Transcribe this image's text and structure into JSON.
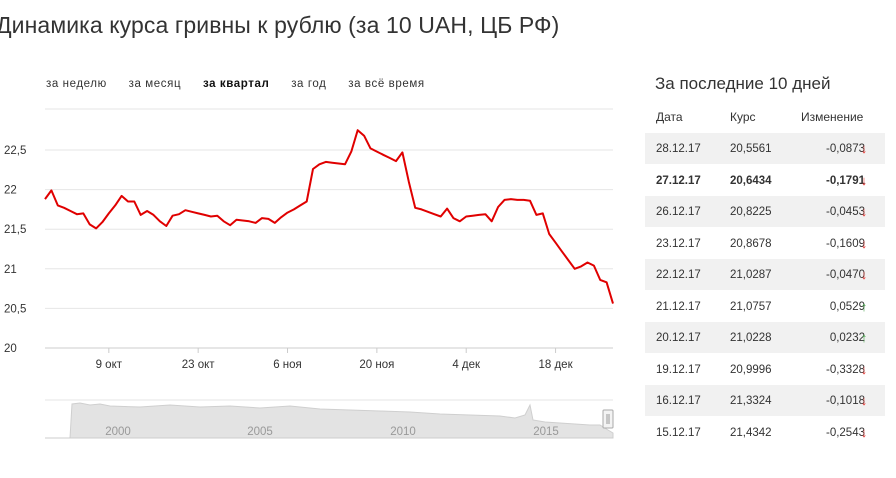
{
  "title": "Динамика курса гривны к рублю (за 10 UAH, ЦБ РФ)",
  "tabs": [
    {
      "label": "за неделю",
      "active": false
    },
    {
      "label": "за месяц",
      "active": false
    },
    {
      "label": "за квартал",
      "active": true
    },
    {
      "label": "за год",
      "active": false
    },
    {
      "label": "за всё время",
      "active": false
    }
  ],
  "chart_data": {
    "type": "line",
    "line_color": "#e00000",
    "grid": "horizontal",
    "ylim": [
      20,
      22.5
    ],
    "yticks": [
      "22,5",
      "22",
      "21,5",
      "21",
      "20,5",
      "20"
    ],
    "yvalues": [
      22.5,
      22,
      21.5,
      21,
      20.5,
      20
    ],
    "xticks": [
      "9 окт",
      "23 окт",
      "6 ноя",
      "20 ноя",
      "4 дек",
      "18 дек"
    ],
    "xtick_days": [
      10,
      24,
      38,
      52,
      66,
      80
    ],
    "series": [
      {
        "x": [
          0,
          1,
          2,
          3,
          4,
          5,
          6,
          7,
          8,
          9,
          10,
          11,
          12,
          13,
          14,
          15,
          16,
          17,
          18,
          19,
          20,
          21,
          22,
          23,
          24,
          25,
          26,
          27,
          28,
          29,
          30,
          31,
          32,
          33,
          34,
          35,
          36,
          37,
          38,
          39,
          40,
          41,
          42,
          43,
          44,
          45,
          46,
          47,
          48,
          49,
          50,
          51,
          52,
          53,
          54,
          55,
          56,
          57,
          58,
          59,
          60,
          61,
          62,
          63,
          64,
          65,
          66,
          67,
          68,
          69,
          70,
          71,
          72,
          73,
          74,
          75,
          76,
          77,
          78,
          79,
          80,
          81,
          82,
          83,
          84,
          85,
          86,
          87,
          88,
          89
        ],
        "y": [
          21.88,
          21.99,
          21.8,
          21.77,
          21.73,
          21.69,
          21.7,
          21.56,
          21.51,
          21.59,
          21.7,
          21.8,
          21.92,
          21.85,
          21.85,
          21.68,
          21.73,
          21.68,
          21.6,
          21.54,
          21.67,
          21.69,
          21.74,
          21.72,
          21.7,
          21.68,
          21.66,
          21.67,
          21.6,
          21.55,
          21.62,
          21.61,
          21.6,
          21.58,
          21.64,
          21.63,
          21.58,
          21.65,
          21.71,
          21.75,
          21.8,
          21.85,
          22.26,
          22.32,
          22.35,
          22.34,
          22.33,
          22.32,
          22.48,
          22.75,
          22.68,
          22.52,
          22.48,
          22.44,
          22.4,
          22.36,
          22.47,
          22.1,
          21.77,
          21.75,
          21.72,
          21.69,
          21.66,
          21.76,
          21.64,
          21.6,
          21.66,
          21.67,
          21.68,
          21.69,
          21.6,
          21.78,
          21.87,
          21.88,
          21.87,
          21.87,
          21.86,
          21.68,
          21.7,
          21.44,
          21.33,
          21.22,
          21.11,
          21.0,
          21.03,
          21.08,
          21.04,
          20.86,
          20.83,
          20.56
        ],
        "visible_end": [
          20.64,
          20.56
        ]
      }
    ],
    "navigator": {
      "labels": [
        "2000",
        "2005",
        "2010",
        "2015"
      ]
    }
  },
  "table": {
    "title": "За последние 10 дней",
    "headers": {
      "date": "Дата",
      "rate": "Курс",
      "change": "Изменение"
    },
    "rows": [
      {
        "date": "28.12.17",
        "rate": "20,5561",
        "change": "-0,0873",
        "arrow": "↓",
        "dir": "down",
        "bold": false
      },
      {
        "date": "27.12.17",
        "rate": "20,6434",
        "change": "-0,1791",
        "arrow": "↓",
        "dir": "down",
        "bold": true
      },
      {
        "date": "26.12.17",
        "rate": "20,8225",
        "change": "-0,0453",
        "arrow": "↓",
        "dir": "down",
        "bold": false
      },
      {
        "date": "23.12.17",
        "rate": "20,8678",
        "change": "-0,1609",
        "arrow": "↓",
        "dir": "down",
        "bold": false
      },
      {
        "date": "22.12.17",
        "rate": "21,0287",
        "change": "-0,0470",
        "arrow": "↓",
        "dir": "down",
        "bold": false
      },
      {
        "date": "21.12.17",
        "rate": "21,0757",
        "change": "0,0529",
        "arrow": "↑",
        "dir": "up",
        "bold": false
      },
      {
        "date": "20.12.17",
        "rate": "21,0228",
        "change": "0,0232",
        "arrow": "↑",
        "dir": "up",
        "bold": false
      },
      {
        "date": "19.12.17",
        "rate": "20,9996",
        "change": "-0,3328",
        "arrow": "↓",
        "dir": "down",
        "bold": false
      },
      {
        "date": "16.12.17",
        "rate": "21,3324",
        "change": "-0,1018",
        "arrow": "↓",
        "dir": "down",
        "bold": false
      },
      {
        "date": "15.12.17",
        "rate": "21,4342",
        "change": "-0,2543",
        "arrow": "↓",
        "dir": "down",
        "bold": false
      }
    ]
  }
}
